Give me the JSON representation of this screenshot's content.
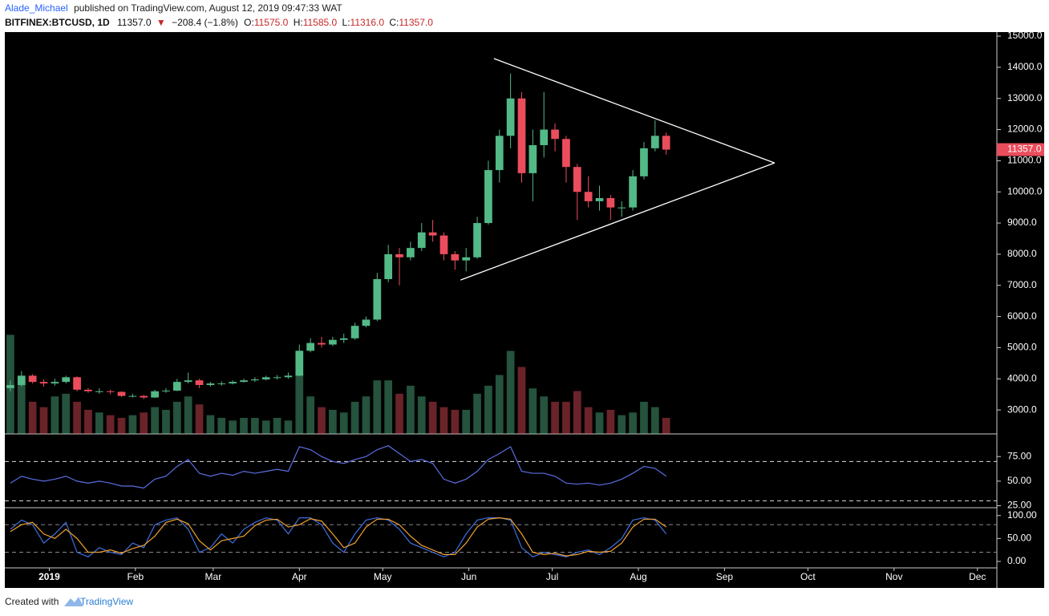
{
  "header": {
    "author": "Alade_Michael",
    "published": "published on TradingView.com, August 12, 2019 09:47:33 WAT",
    "symbol": "BITFINEX:BTCUSD, 1D",
    "last": "11357.0",
    "arrow": "▼",
    "change": "−208.4 (−1.8%)",
    "ohlc": [
      {
        "label": "O:",
        "value": "11575.0"
      },
      {
        "label": "H:",
        "value": "11585.0"
      },
      {
        "label": "L:",
        "value": "11316.0"
      },
      {
        "label": "C:",
        "value": "11357.0"
      }
    ]
  },
  "chart_data": {
    "type": "candlestick",
    "x": [
      -14,
      -10,
      -6,
      -2,
      2,
      6,
      10,
      14,
      18,
      22,
      26,
      30,
      34,
      38,
      42,
      46,
      50,
      54,
      58,
      62,
      66,
      70,
      74,
      78,
      82,
      86,
      90,
      94,
      98,
      102,
      106,
      110,
      114,
      118,
      122,
      126,
      130,
      134,
      138,
      142,
      146,
      150,
      154,
      158,
      162,
      166,
      170,
      174,
      178,
      182,
      186,
      190,
      194,
      198,
      202,
      206,
      210,
      214,
      218,
      222
    ],
    "open": [
      3700,
      3800,
      4100,
      3900,
      3850,
      3900,
      4050,
      3650,
      3600,
      3600,
      3580,
      3450,
      3450,
      3400,
      3600,
      3620,
      3900,
      3950,
      3800,
      3850,
      3850,
      3900,
      3950,
      3980,
      4050,
      4050,
      4100,
      4900,
      5150,
      5100,
      5250,
      5300,
      5700,
      5900,
      7200,
      8000,
      7900,
      8200,
      8700,
      8600,
      8000,
      7800,
      7900,
      9000,
      10700,
      11800,
      13000,
      10600,
      11500,
      12000,
      11700,
      10800,
      10000,
      9700,
      9800,
      9500,
      9500,
      10500,
      11400,
      11800
    ],
    "high": [
      3950,
      4250,
      4150,
      3980,
      4000,
      4100,
      4080,
      3700,
      3700,
      3650,
      3600,
      3520,
      3480,
      3650,
      3700,
      4000,
      4200,
      4000,
      3900,
      3920,
      3950,
      4000,
      4050,
      4100,
      4120,
      4200,
      5100,
      5300,
      5350,
      5350,
      5450,
      5800,
      6000,
      7400,
      8300,
      8200,
      8400,
      9000,
      9100,
      8700,
      8100,
      8200,
      9200,
      11000,
      12000,
      13800,
      13200,
      12000,
      13200,
      12200,
      11800,
      10900,
      10500,
      10200,
      9900,
      9700,
      10700,
      11600,
      12300,
      11900
    ],
    "low": [
      3600,
      3750,
      3850,
      3750,
      3780,
      3850,
      3600,
      3550,
      3520,
      3500,
      3420,
      3400,
      3350,
      3380,
      3550,
      3600,
      3850,
      3700,
      3750,
      3780,
      3820,
      3880,
      3900,
      3950,
      3980,
      4000,
      4080,
      4850,
      5000,
      5050,
      5150,
      5250,
      5650,
      5850,
      7100,
      7000,
      7800,
      8100,
      8400,
      7800,
      7500,
      7450,
      7850,
      8950,
      10300,
      11400,
      10300,
      9700,
      11100,
      11300,
      10300,
      9100,
      9500,
      9400,
      9100,
      9200,
      9400,
      10400,
      11300,
      11200
    ],
    "close": [
      3800,
      4100,
      3900,
      3850,
      3900,
      4050,
      3650,
      3600,
      3600,
      3580,
      3450,
      3450,
      3400,
      3600,
      3620,
      3900,
      3950,
      3800,
      3850,
      3850,
      3900,
      3950,
      3980,
      4050,
      4050,
      4100,
      4900,
      5150,
      5100,
      5250,
      5300,
      5700,
      5900,
      7200,
      8000,
      7900,
      8200,
      8700,
      8600,
      8000,
      7800,
      7900,
      9000,
      10700,
      11800,
      13000,
      10600,
      11500,
      12000,
      11700,
      10800,
      10000,
      9700,
      9800,
      9500,
      9500,
      10500,
      11400,
      11800,
      11357
    ],
    "up_color": "#53b987",
    "down_color": "#eb4d5c",
    "xlim": [
      -16,
      341
    ],
    "xticks": [
      {
        "value": 0,
        "label": "2019"
      },
      {
        "value": 31,
        "label": "Feb"
      },
      {
        "value": 59,
        "label": "Mar"
      },
      {
        "value": 90,
        "label": "Apr"
      },
      {
        "value": 120,
        "label": "May"
      },
      {
        "value": 151,
        "label": "Jun"
      },
      {
        "value": 181,
        "label": "Jul"
      },
      {
        "value": 212,
        "label": "Aug"
      },
      {
        "value": 243,
        "label": "Sep"
      },
      {
        "value": 273,
        "label": "Oct"
      },
      {
        "value": 304,
        "label": "Nov"
      },
      {
        "value": 334,
        "label": "Dec"
      }
    ],
    "ylim": [
      2230,
      15130
    ],
    "yticks": [
      {
        "value": 3000,
        "label": "3000.0"
      },
      {
        "value": 4000,
        "label": "4000.0"
      },
      {
        "value": 5000,
        "label": "5000.0"
      },
      {
        "value": 6000,
        "label": "6000.0"
      },
      {
        "value": 7000,
        "label": "7000.0"
      },
      {
        "value": 8000,
        "label": "8000.0"
      },
      {
        "value": 9000,
        "label": "9000.0"
      },
      {
        "value": 10000,
        "label": "10000.0"
      },
      {
        "value": 11000,
        "label": "11000.0"
      },
      {
        "value": 12000,
        "label": "12000.0"
      },
      {
        "value": 13000,
        "label": "13000.0"
      },
      {
        "value": 14000,
        "label": "14000.0"
      },
      {
        "value": 15000,
        "label": "15000.0"
      }
    ],
    "grid": false,
    "volume": [
      37,
      20,
      12,
      10,
      14,
      15,
      12,
      9,
      8,
      7,
      6,
      7,
      8,
      10,
      9,
      12,
      14,
      11,
      7,
      6,
      5,
      6,
      6,
      5,
      6,
      5,
      22,
      14,
      10,
      9,
      8,
      12,
      14,
      20,
      20,
      15,
      18,
      14,
      12,
      10,
      9,
      9,
      15,
      18,
      22,
      31,
      25,
      17,
      14,
      12,
      12,
      16,
      10,
      8,
      9,
      7,
      8,
      12,
      10,
      6
    ],
    "volume_lim": [
      0,
      150
    ],
    "trend_lines": [
      {
        "x": [
          160,
          261
        ],
        "y": [
          14280,
          10930
        ]
      },
      {
        "x": [
          148,
          261
        ],
        "y": [
          7170,
          10930
        ]
      }
    ],
    "rsi": {
      "color": "#5b6ee1",
      "values": [
        48,
        55,
        52,
        50,
        52,
        55,
        50,
        48,
        50,
        48,
        45,
        45,
        43,
        52,
        55,
        65,
        72,
        58,
        55,
        58,
        56,
        60,
        58,
        60,
        62,
        60,
        85,
        82,
        75,
        70,
        68,
        72,
        75,
        82,
        86,
        78,
        70,
        72,
        68,
        52,
        48,
        52,
        60,
        72,
        78,
        85,
        60,
        58,
        58,
        55,
        48,
        47,
        48,
        46,
        48,
        52,
        58,
        65,
        63,
        55
      ],
      "ylim": [
        23,
        98
      ],
      "yticks": [
        {
          "value": 25,
          "label": "25.00"
        },
        {
          "value": 50,
          "label": "50.00"
        },
        {
          "value": 75,
          "label": "75.00"
        }
      ],
      "bands": [
        30,
        70
      ]
    },
    "stoch": {
      "ylim": [
        -14,
        117
      ],
      "yticks": [
        {
          "value": 0,
          "label": "0.00"
        },
        {
          "value": 50,
          "label": "50.00"
        },
        {
          "value": 100,
          "label": "100.00"
        }
      ],
      "bands": [
        20,
        80
      ],
      "series": [
        {
          "color": "#3f6fe0",
          "values": [
            70,
            90,
            80,
            40,
            60,
            85,
            20,
            10,
            30,
            20,
            15,
            40,
            30,
            80,
            90,
            95,
            70,
            20,
            30,
            60,
            40,
            70,
            85,
            95,
            90,
            60,
            95,
            95,
            80,
            40,
            20,
            60,
            90,
            95,
            90,
            70,
            40,
            30,
            20,
            10,
            20,
            60,
            90,
            95,
            95,
            90,
            30,
            10,
            20,
            15,
            10,
            20,
            25,
            15,
            30,
            50,
            90,
            95,
            90,
            60
          ]
        },
        {
          "color": "#f0a030",
          "values": [
            65,
            80,
            85,
            60,
            50,
            70,
            50,
            20,
            20,
            25,
            18,
            28,
            35,
            55,
            85,
            92,
            82,
            45,
            25,
            45,
            50,
            55,
            78,
            90,
            92,
            75,
            80,
            93,
            88,
            60,
            30,
            40,
            75,
            92,
            92,
            80,
            55,
            35,
            25,
            15,
            15,
            40,
            75,
            92,
            95,
            92,
            60,
            20,
            15,
            18,
            12,
            15,
            22,
            20,
            22,
            40,
            75,
            92,
            92,
            75
          ]
        }
      ]
    }
  },
  "footer": {
    "created": "Created with",
    "brand": "TradingView"
  }
}
